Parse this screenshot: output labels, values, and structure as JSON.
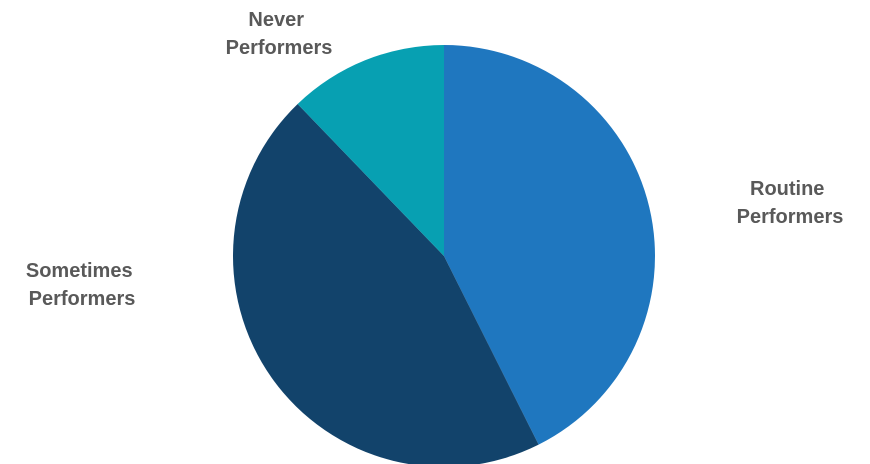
{
  "chart_data": {
    "type": "pie",
    "title": "",
    "start_angle_deg": 0,
    "direction": "clockwise",
    "slices": [
      {
        "label_lines": [
          "Routine",
          "Performers"
        ],
        "value": 42.6,
        "color": "#1f77bf"
      },
      {
        "label_lines": [
          "Sometimes",
          "Performers"
        ],
        "value": 45.2,
        "color": "#12436b"
      },
      {
        "label_lines": [
          "Never",
          "Performers"
        ],
        "value": 12.2,
        "color": "#07a0b2"
      }
    ]
  }
}
